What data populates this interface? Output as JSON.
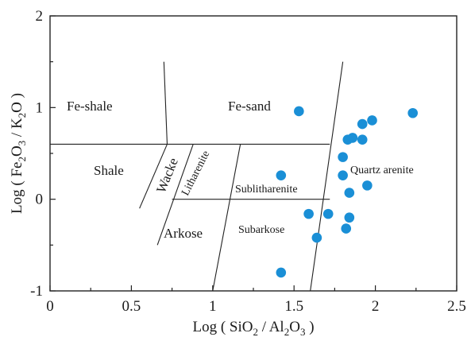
{
  "chart_data": {
    "type": "scatter",
    "xlabel": {
      "prefix": "Log ( SiO",
      "s1": "2",
      "mid": " / Al",
      "s2": "2",
      "tail": "O",
      "s3": "3",
      "suffix": " )"
    },
    "ylabel": {
      "prefix": "Log ( Fe",
      "s1": "2",
      "mid": "O",
      "s2": "3",
      "mid2": " / K",
      "s3": "2",
      "suffix": "O )"
    },
    "xlim": [
      0,
      2.5
    ],
    "ylim": [
      -1,
      2
    ],
    "xticks": [
      "0",
      "0.5",
      "1",
      "1.5",
      "2",
      "2.5"
    ],
    "yticks": [
      "-1",
      "0",
      "1",
      "2"
    ],
    "grid": false,
    "regions": {
      "fe_shale": "Fe-shale",
      "fe_sand": "Fe-sand",
      "shale": "Shale",
      "wacke": "Wacke",
      "litharenite": "Litharenite",
      "sublitharenite": "Sublitharenite",
      "quartz_arenite": "Quartz arenite",
      "arkose": "Arkose",
      "subarkose": "Subarkose"
    },
    "point_color": "#1a8fd6",
    "points": [
      {
        "x": 1.53,
        "y": 0.96
      },
      {
        "x": 2.23,
        "y": 0.94
      },
      {
        "x": 1.98,
        "y": 0.86
      },
      {
        "x": 1.92,
        "y": 0.82
      },
      {
        "x": 1.86,
        "y": 0.67
      },
      {
        "x": 1.83,
        "y": 0.65
      },
      {
        "x": 1.92,
        "y": 0.65
      },
      {
        "x": 1.8,
        "y": 0.46
      },
      {
        "x": 1.42,
        "y": 0.26
      },
      {
        "x": 1.8,
        "y": 0.26
      },
      {
        "x": 1.95,
        "y": 0.15
      },
      {
        "x": 1.84,
        "y": 0.07
      },
      {
        "x": 1.59,
        "y": -0.16
      },
      {
        "x": 1.71,
        "y": -0.16
      },
      {
        "x": 1.84,
        "y": -0.2
      },
      {
        "x": 1.82,
        "y": -0.32
      },
      {
        "x": 1.64,
        "y": -0.42
      },
      {
        "x": 1.42,
        "y": -0.8
      }
    ]
  }
}
